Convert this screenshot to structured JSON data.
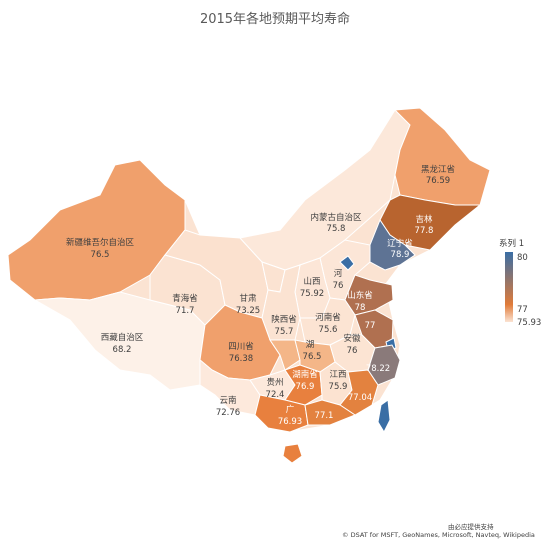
{
  "title": "2015年各地预期平均寿命",
  "legend": {
    "title": "系列 1",
    "max_label": "80",
    "mid_label": "77",
    "min_label": "75.93",
    "colors": {
      "high": "#3a6ea5",
      "mid": "#e07b39",
      "low": "#fbe3d2"
    }
  },
  "attribution": {
    "line1": "由必应提供支持",
    "line2": "© DSAT for MSFT, GeoNames, Microsoft, Navteq, Wikipedia"
  },
  "regions": [
    {
      "name": "黑龙江省",
      "value": "76.59"
    },
    {
      "name": "吉林",
      "value": "77.8"
    },
    {
      "name": "辽宁省",
      "value": "78.9"
    },
    {
      "name": "内蒙古自治区",
      "value": "75.8"
    },
    {
      "name": "新疆维吾尔自治区",
      "value": "76.5"
    },
    {
      "name": "河",
      "value": "76"
    },
    {
      "name": "山西",
      "value": "75.92"
    },
    {
      "name": "山东省",
      "value": "78"
    },
    {
      "name": "青海省",
      "value": "71.7"
    },
    {
      "name": "甘肃",
      "value": "73.25"
    },
    {
      "name": "西藏自治区",
      "value": "68.2"
    },
    {
      "name": "陕西省",
      "value": "75.7"
    },
    {
      "name": "河南省",
      "value": "75.6"
    },
    {
      "name": "安徽",
      "value": "76"
    },
    {
      "name": "77",
      "value": ""
    },
    {
      "name": "四川省",
      "value": "76.38"
    },
    {
      "name": "湖",
      "value": "76.5"
    },
    {
      "name": "贵州",
      "value": "72.4"
    },
    {
      "name": "湖南省",
      "value": "76.9"
    },
    {
      "name": "江西",
      "value": "75.9"
    },
    {
      "name": "78.22",
      "value": ""
    },
    {
      "name": "云南",
      "value": "72.76"
    },
    {
      "name": "广",
      "value": "76.93"
    },
    {
      "name": "77.1",
      "value": ""
    },
    {
      "name": "77.04",
      "value": ""
    }
  ]
}
